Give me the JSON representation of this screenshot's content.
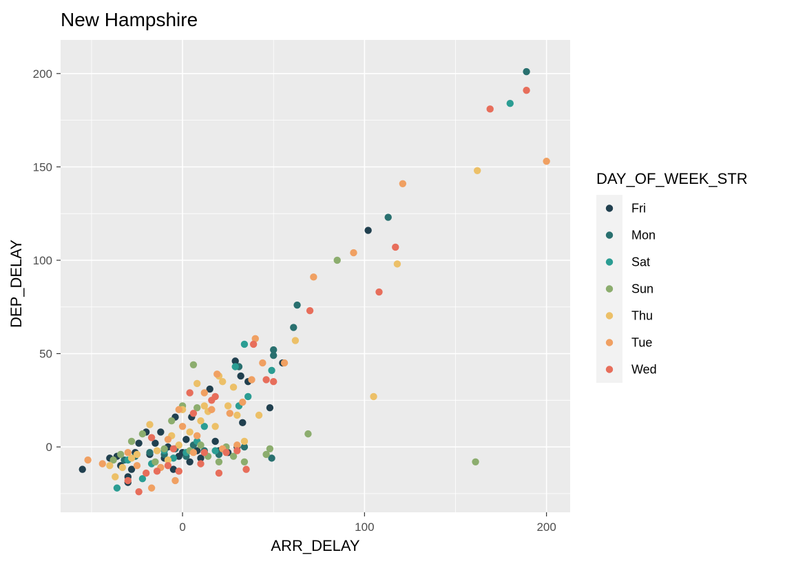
{
  "chart_data": {
    "type": "scatter",
    "title": "New Hampshire",
    "xlabel": "ARR_DELAY",
    "ylabel": "DEP_DELAY",
    "xlim": [
      -67,
      213
    ],
    "ylim": [
      -35,
      218
    ],
    "x_ticks": [
      0,
      100,
      200
    ],
    "y_ticks": [
      0,
      50,
      100,
      150,
      200
    ],
    "grid": true,
    "legend": {
      "title": "DAY_OF_WEEK_STR",
      "placement": "right"
    },
    "series": [
      {
        "name": "Fri",
        "color": "#21404f",
        "points": [
          [
            -55,
            -12
          ],
          [
            -40,
            -6
          ],
          [
            -36,
            -5
          ],
          [
            -34,
            -10
          ],
          [
            -30,
            -19
          ],
          [
            -30,
            -16
          ],
          [
            -28,
            -12
          ],
          [
            -26,
            -3
          ],
          [
            -24,
            2
          ],
          [
            -20,
            8
          ],
          [
            -18,
            -4
          ],
          [
            -15,
            2
          ],
          [
            -12,
            8
          ],
          [
            -10,
            -6
          ],
          [
            -8,
            0
          ],
          [
            -5,
            -12
          ],
          [
            -4,
            16
          ],
          [
            -2,
            -5
          ],
          [
            0,
            -3
          ],
          [
            2,
            4
          ],
          [
            4,
            -8
          ],
          [
            5,
            16
          ],
          [
            8,
            -2
          ],
          [
            10,
            -6
          ],
          [
            12,
            -3
          ],
          [
            15,
            31
          ],
          [
            18,
            3
          ],
          [
            20,
            -2
          ],
          [
            25,
            -3
          ],
          [
            29,
            46
          ],
          [
            30,
            0
          ],
          [
            32,
            38
          ],
          [
            33,
            13
          ],
          [
            36,
            35
          ],
          [
            48,
            21
          ],
          [
            55,
            45
          ],
          [
            102,
            116
          ]
        ]
      },
      {
        "name": "Mon",
        "color": "#29706f",
        "points": [
          [
            -32,
            -7
          ],
          [
            -26,
            -5
          ],
          [
            -18,
            -3
          ],
          [
            -10,
            -4
          ],
          [
            -4,
            -1
          ],
          [
            2,
            -5
          ],
          [
            6,
            1
          ],
          [
            12,
            -2
          ],
          [
            20,
            -4
          ],
          [
            31,
            43
          ],
          [
            34,
            0
          ],
          [
            49,
            -6
          ],
          [
            50,
            49
          ],
          [
            50,
            52
          ],
          [
            61,
            64
          ],
          [
            63,
            76
          ],
          [
            113,
            123
          ],
          [
            189,
            201
          ]
        ]
      },
      {
        "name": "Sat",
        "color": "#2b9d93",
        "points": [
          [
            -36,
            -22
          ],
          [
            -30,
            -7
          ],
          [
            -22,
            -17
          ],
          [
            -17,
            -9
          ],
          [
            -10,
            -2
          ],
          [
            -5,
            -6
          ],
          [
            2,
            -3
          ],
          [
            8,
            3
          ],
          [
            12,
            11
          ],
          [
            18,
            -2
          ],
          [
            29,
            43
          ],
          [
            31,
            22
          ],
          [
            34,
            55
          ],
          [
            36,
            27
          ],
          [
            49,
            41
          ],
          [
            180,
            184
          ]
        ]
      },
      {
        "name": "Sun",
        "color": "#8cad6e",
        "points": [
          [
            -38,
            -7
          ],
          [
            -34,
            -4
          ],
          [
            -28,
            3
          ],
          [
            -22,
            7
          ],
          [
            -15,
            -8
          ],
          [
            -10,
            -1
          ],
          [
            -6,
            14
          ],
          [
            0,
            22
          ],
          [
            4,
            -2
          ],
          [
            6,
            44
          ],
          [
            8,
            21
          ],
          [
            10,
            1
          ],
          [
            14,
            -5
          ],
          [
            20,
            -8
          ],
          [
            24,
            0
          ],
          [
            28,
            -5
          ],
          [
            34,
            -8
          ],
          [
            46,
            -4
          ],
          [
            48,
            -1
          ],
          [
            69,
            7
          ],
          [
            85,
            100
          ],
          [
            161,
            -8
          ]
        ]
      },
      {
        "name": "Thu",
        "color": "#ecc068",
        "points": [
          [
            -40,
            -10
          ],
          [
            -37,
            -16
          ],
          [
            -33,
            -11
          ],
          [
            -28,
            -6
          ],
          [
            -25,
            -4
          ],
          [
            -18,
            12
          ],
          [
            -14,
            -2
          ],
          [
            -8,
            -7
          ],
          [
            -6,
            6
          ],
          [
            -2,
            1
          ],
          [
            0,
            20
          ],
          [
            4,
            8
          ],
          [
            8,
            34
          ],
          [
            10,
            14
          ],
          [
            12,
            22
          ],
          [
            14,
            19
          ],
          [
            18,
            11
          ],
          [
            20,
            38
          ],
          [
            22,
            35
          ],
          [
            25,
            22
          ],
          [
            28,
            32
          ],
          [
            30,
            17
          ],
          [
            34,
            3
          ],
          [
            42,
            17
          ],
          [
            62,
            57
          ],
          [
            105,
            27
          ],
          [
            118,
            98
          ],
          [
            162,
            148
          ]
        ]
      },
      {
        "name": "Tue",
        "color": "#f0a062",
        "points": [
          [
            -52,
            -7
          ],
          [
            -44,
            -9
          ],
          [
            -30,
            -3
          ],
          [
            -25,
            -10
          ],
          [
            -17,
            -22
          ],
          [
            -12,
            -11
          ],
          [
            -8,
            4
          ],
          [
            -4,
            -18
          ],
          [
            -2,
            20
          ],
          [
            0,
            11
          ],
          [
            6,
            -3
          ],
          [
            8,
            6
          ],
          [
            12,
            29
          ],
          [
            16,
            20
          ],
          [
            19,
            39
          ],
          [
            22,
            -1
          ],
          [
            26,
            18
          ],
          [
            30,
            1
          ],
          [
            33,
            24
          ],
          [
            38,
            36
          ],
          [
            40,
            58
          ],
          [
            44,
            45
          ],
          [
            56,
            45
          ],
          [
            72,
            91
          ],
          [
            94,
            104
          ],
          [
            121,
            141
          ],
          [
            200,
            153
          ]
        ]
      },
      {
        "name": "Wed",
        "color": "#e76e5b",
        "points": [
          [
            -30,
            -18
          ],
          [
            -24,
            -24
          ],
          [
            -20,
            -14
          ],
          [
            -17,
            5
          ],
          [
            -14,
            -13
          ],
          [
            -8,
            -10
          ],
          [
            -5,
            -1
          ],
          [
            -2,
            -13
          ],
          [
            4,
            29
          ],
          [
            6,
            18
          ],
          [
            10,
            -9
          ],
          [
            12,
            -3
          ],
          [
            16,
            25
          ],
          [
            18,
            27
          ],
          [
            20,
            -14
          ],
          [
            24,
            -3
          ],
          [
            30,
            -2
          ],
          [
            35,
            -12
          ],
          [
            39,
            55
          ],
          [
            46,
            36
          ],
          [
            50,
            35
          ],
          [
            70,
            73
          ],
          [
            108,
            83
          ],
          [
            117,
            107
          ],
          [
            169,
            181
          ],
          [
            189,
            191
          ]
        ]
      }
    ]
  }
}
